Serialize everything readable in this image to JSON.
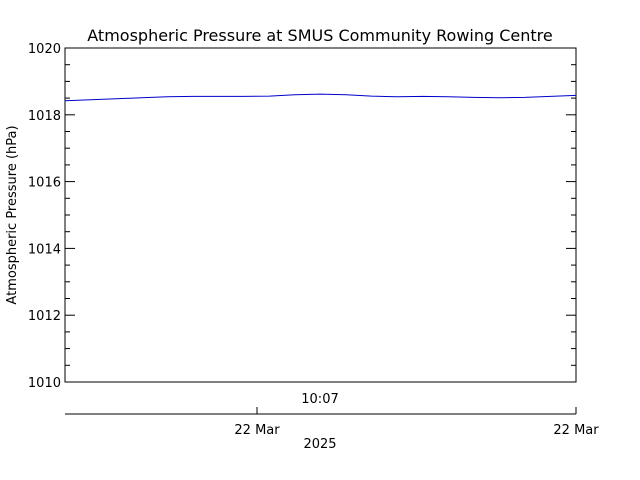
{
  "chart_data": {
    "type": "line",
    "title": "Atmospheric Pressure at SMUS Community Rowing Centre",
    "ylabel": "Atmospheric Pressure (hPa)",
    "ylim": [
      1010,
      1020
    ],
    "y_ticks": [
      "1010",
      "1012",
      "1014",
      "1016",
      "1018",
      "1020"
    ],
    "x_time_label": "10:07",
    "x_date_ticks": [
      "22 Mar",
      "22 Mar"
    ],
    "x_year_label": "2025",
    "series": [
      {
        "color": "#0000cc",
        "values": [
          1018.42,
          1018.45,
          1018.48,
          1018.51,
          1018.54,
          1018.55,
          1018.55,
          1018.55,
          1018.56,
          1018.6,
          1018.62,
          1018.6,
          1018.56,
          1018.54,
          1018.55,
          1018.54,
          1018.52,
          1018.51,
          1018.52,
          1018.55,
          1018.58
        ]
      }
    ],
    "grid": false,
    "legend": "none"
  }
}
